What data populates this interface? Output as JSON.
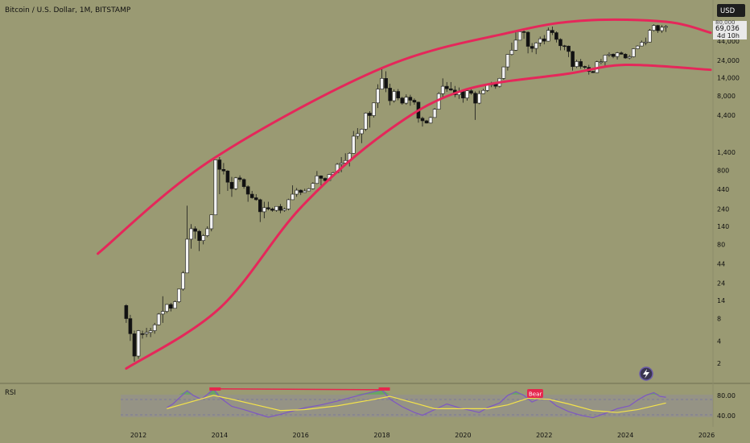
{
  "header": {
    "title": "Bitcoin / U.S. Dollar, 1M, BITSTAMP",
    "currency": "USD"
  },
  "price_badge": {
    "price": "69,036",
    "countdown": "4d 10h",
    "overlay": "80,000"
  },
  "rsi_panel": {
    "label": "RSI",
    "levels": [
      "80.00",
      "40.00"
    ],
    "bear_label": "Bear"
  },
  "icons": [
    "lightning-icon"
  ],
  "colors": {
    "background": "#9a9a73",
    "channel": "#e5275a",
    "rsi": "#7e57c2",
    "rsi_ma": "#f4e34a",
    "candle_up": "#f2f2f2",
    "candle_down": "#111111"
  },
  "chart_data": {
    "type": "candlestick",
    "title": "Bitcoin / U.S. Dollar, 1M, BITSTAMP",
    "y_scale": "log",
    "y_ticks": [
      "80,000",
      "44,000",
      "24,000",
      "14,000",
      "8,000",
      "4,400",
      "1,400",
      "800",
      "440",
      "240",
      "140",
      "80",
      "44",
      "24",
      "14",
      "8",
      "4",
      "2"
    ],
    "x_ticks": [
      "2012",
      "2014",
      "2016",
      "2018",
      "2020",
      "2022",
      "2024",
      "2026"
    ],
    "last_price": 69036,
    "channel": {
      "upper": [
        [
          2011.0,
          60
        ],
        [
          2013.8,
          1100
        ],
        [
          2018.0,
          19000
        ],
        [
          2021.2,
          58000
        ],
        [
          2023.0,
          83000
        ],
        [
          2025.0,
          80000
        ],
        [
          2026.1,
          57000
        ]
      ],
      "lower": [
        [
          2011.7,
          1.7
        ],
        [
          2014.0,
          11
        ],
        [
          2016.0,
          250
        ],
        [
          2018.1,
          2600
        ],
        [
          2020.0,
          9500
        ],
        [
          2022.6,
          16000
        ],
        [
          2024.0,
          21000
        ],
        [
          2026.1,
          18000
        ]
      ]
    },
    "candles": [
      [
        2011.7,
        12,
        12.5,
        7,
        8
      ],
      [
        2011.8,
        8,
        9,
        4,
        5
      ],
      [
        2011.9,
        5,
        5.5,
        2.1,
        2.5
      ],
      [
        2012.0,
        2.5,
        5.6,
        2.3,
        5.5
      ],
      [
        2012.1,
        5,
        5.5,
        4.3,
        4.9
      ],
      [
        2012.2,
        5,
        6,
        4.5,
        5.2
      ],
      [
        2012.3,
        5.2,
        6,
        4.5,
        5.5
      ],
      [
        2012.4,
        5.5,
        7,
        5,
        6.6
      ],
      [
        2012.5,
        6.6,
        9.5,
        6.5,
        9.2
      ],
      [
        2012.6,
        9.2,
        16,
        7,
        10
      ],
      [
        2012.7,
        10,
        12.5,
        9.5,
        12.4
      ],
      [
        2012.8,
        12.4,
        13,
        10,
        11
      ],
      [
        2012.9,
        11,
        14,
        11,
        13.5
      ],
      [
        2013.0,
        13.5,
        20,
        13,
        20
      ],
      [
        2013.1,
        20,
        35,
        19,
        33
      ],
      [
        2013.2,
        33,
        266,
        50,
        94
      ],
      [
        2013.3,
        94,
        150,
        70,
        130
      ],
      [
        2013.4,
        130,
        140,
        95,
        120
      ],
      [
        2013.5,
        120,
        125,
        65,
        90
      ],
      [
        2013.6,
        90,
        110,
        80,
        105
      ],
      [
        2013.7,
        105,
        140,
        100,
        130
      ],
      [
        2013.8,
        130,
        160,
        120,
        200
      ],
      [
        2013.9,
        200,
        1100,
        200,
        1100
      ],
      [
        2014.0,
        1100,
        1200,
        380,
        820
      ],
      [
        2014.1,
        820,
        1000,
        700,
        780
      ],
      [
        2014.2,
        780,
        800,
        420,
        550
      ],
      [
        2014.3,
        550,
        650,
        350,
        450
      ],
      [
        2014.4,
        450,
        650,
        430,
        630
      ],
      [
        2014.5,
        630,
        680,
        560,
        600
      ],
      [
        2014.6,
        600,
        620,
        450,
        480
      ],
      [
        2014.7,
        480,
        500,
        300,
        380
      ],
      [
        2014.8,
        380,
        420,
        330,
        340
      ],
      [
        2014.9,
        340,
        380,
        310,
        320
      ],
      [
        2015.0,
        320,
        330,
        160,
        220
      ],
      [
        2015.1,
        220,
        300,
        180,
        250
      ],
      [
        2015.2,
        250,
        300,
        230,
        240
      ],
      [
        2015.3,
        240,
        250,
        220,
        230
      ],
      [
        2015.4,
        230,
        260,
        220,
        260
      ],
      [
        2015.5,
        260,
        280,
        210,
        230
      ],
      [
        2015.6,
        230,
        250,
        220,
        240
      ],
      [
        2015.7,
        240,
        330,
        230,
        320
      ],
      [
        2015.8,
        320,
        500,
        320,
        380
      ],
      [
        2015.9,
        380,
        460,
        350,
        430
      ],
      [
        2016.0,
        430,
        440,
        370,
        400
      ],
      [
        2016.1,
        400,
        450,
        400,
        420
      ],
      [
        2016.2,
        420,
        460,
        420,
        450
      ],
      [
        2016.3,
        450,
        550,
        440,
        530
      ],
      [
        2016.4,
        530,
        780,
        520,
        670
      ],
      [
        2016.5,
        670,
        680,
        500,
        620
      ],
      [
        2016.6,
        620,
        640,
        560,
        580
      ],
      [
        2016.7,
        580,
        710,
        580,
        700
      ],
      [
        2016.8,
        700,
        760,
        690,
        740
      ],
      [
        2016.9,
        740,
        1000,
        740,
        960
      ],
      [
        2017.0,
        960,
        1200,
        750,
        1000
      ],
      [
        2017.1,
        1000,
        1350,
        950,
        1080
      ],
      [
        2017.2,
        1080,
        1400,
        900,
        1350
      ],
      [
        2017.3,
        1350,
        2700,
        1350,
        2300
      ],
      [
        2017.4,
        2300,
        2950,
        2100,
        2480
      ],
      [
        2017.5,
        2480,
        2900,
        1850,
        2850
      ],
      [
        2017.6,
        2850,
        4800,
        2700,
        4700
      ],
      [
        2017.7,
        4700,
        5000,
        3000,
        4350
      ],
      [
        2017.8,
        4350,
        6500,
        4100,
        6450
      ],
      [
        2017.9,
        6450,
        11500,
        5500,
        9900
      ],
      [
        2018.0,
        9900,
        19500,
        9800,
        13800
      ],
      [
        2018.1,
        13800,
        17200,
        9000,
        10200
      ],
      [
        2018.2,
        10200,
        11700,
        6000,
        6900
      ],
      [
        2018.3,
        6900,
        9800,
        6500,
        9200
      ],
      [
        2018.4,
        9200,
        9900,
        7000,
        7500
      ],
      [
        2018.5,
        7500,
        7800,
        6100,
        6400
      ],
      [
        2018.6,
        6400,
        8400,
        6100,
        7700
      ],
      [
        2018.7,
        7700,
        8300,
        5900,
        7000
      ],
      [
        2018.8,
        7000,
        7400,
        6100,
        6600
      ],
      [
        2018.9,
        6600,
        6700,
        3500,
        4000
      ],
      [
        2019.0,
        4000,
        4200,
        3100,
        3700
      ],
      [
        2019.1,
        3700,
        3800,
        3400,
        3450
      ],
      [
        2019.2,
        3450,
        4200,
        3400,
        4100
      ],
      [
        2019.3,
        4100,
        5500,
        4100,
        5300
      ],
      [
        2019.4,
        5300,
        9000,
        5300,
        8600
      ],
      [
        2019.5,
        8600,
        13800,
        7600,
        10800
      ],
      [
        2019.6,
        10800,
        12300,
        9100,
        10000
      ],
      [
        2019.7,
        10000,
        12300,
        9400,
        9600
      ],
      [
        2019.8,
        9600,
        10900,
        7700,
        8300
      ],
      [
        2019.9,
        8300,
        10400,
        7300,
        9200
      ],
      [
        2020.0,
        9200,
        9500,
        6500,
        7500
      ],
      [
        2020.1,
        7500,
        9500,
        6900,
        9400
      ],
      [
        2020.2,
        9400,
        10500,
        8300,
        8700
      ],
      [
        2020.3,
        8700,
        9200,
        3800,
        6400
      ],
      [
        2020.4,
        6400,
        9400,
        6200,
        8600
      ],
      [
        2020.5,
        8600,
        10000,
        8500,
        9500
      ],
      [
        2020.6,
        9500,
        11400,
        9100,
        11300
      ],
      [
        2020.7,
        11300,
        12400,
        10500,
        11700
      ],
      [
        2020.8,
        11700,
        12100,
        10000,
        10800
      ],
      [
        2020.9,
        10800,
        14000,
        10400,
        13800
      ],
      [
        2021.0,
        13800,
        19800,
        13200,
        19700
      ],
      [
        2021.1,
        19700,
        29300,
        17600,
        29000
      ],
      [
        2021.2,
        29000,
        41900,
        28100,
        33100
      ],
      [
        2021.3,
        33100,
        58300,
        32300,
        45200
      ],
      [
        2021.4,
        45200,
        61700,
        44900,
        58800
      ],
      [
        2021.5,
        58800,
        64800,
        47000,
        57700
      ],
      [
        2021.6,
        57700,
        59500,
        30000,
        37300
      ],
      [
        2021.7,
        37300,
        41300,
        31000,
        35000
      ],
      [
        2021.8,
        35000,
        42500,
        29300,
        41500
      ],
      [
        2021.9,
        41500,
        50500,
        37400,
        47100
      ],
      [
        2022.0,
        47100,
        52900,
        39700,
        43800
      ],
      [
        2022.1,
        43800,
        66900,
        43300,
        61300
      ],
      [
        2022.2,
        61300,
        69000,
        53000,
        57000
      ],
      [
        2022.3,
        57000,
        59200,
        42000,
        46300
      ],
      [
        2022.4,
        46300,
        48000,
        32900,
        38000
      ],
      [
        2022.5,
        38000,
        39000,
        33000,
        37600
      ],
      [
        2022.6,
        37600,
        38200,
        26700,
        31800
      ],
      [
        2022.7,
        31800,
        32400,
        17600,
        19900
      ],
      [
        2022.8,
        19900,
        24600,
        19000,
        23300
      ],
      [
        2022.9,
        23300,
        25200,
        18600,
        20000
      ],
      [
        2023.0,
        20000,
        20500,
        18500,
        19400
      ],
      [
        2023.1,
        19400,
        21000,
        15500,
        17100
      ],
      [
        2023.2,
        17100,
        17400,
        16300,
        16500
      ],
      [
        2023.3,
        16500,
        23900,
        16500,
        23100
      ],
      [
        2023.4,
        23100,
        25200,
        21400,
        23100
      ],
      [
        2023.5,
        23100,
        28800,
        19500,
        28400
      ],
      [
        2023.6,
        28400,
        31000,
        26900,
        29200
      ],
      [
        2023.7,
        29200,
        30000,
        25800,
        27200
      ],
      [
        2023.8,
        27200,
        31400,
        24800,
        30500
      ],
      [
        2023.9,
        30500,
        31800,
        28900,
        29200
      ],
      [
        2024.0,
        29200,
        30200,
        25300,
        26000
      ],
      [
        2024.1,
        26000,
        28600,
        24900,
        27000
      ],
      [
        2024.2,
        27000,
        35200,
        26500,
        34600
      ],
      [
        2024.3,
        34600,
        38400,
        34100,
        37700
      ],
      [
        2024.4,
        37700,
        44700,
        37600,
        42300
      ],
      [
        2024.5,
        42300,
        48900,
        38600,
        42600
      ],
      [
        2024.6,
        42600,
        63900,
        42200,
        61200
      ],
      [
        2024.7,
        61200,
        73800,
        59000,
        71300
      ],
      [
        2024.8,
        71300,
        72700,
        56500,
        60700
      ],
      [
        2024.9,
        60700,
        71900,
        56600,
        67500
      ],
      [
        2025.0,
        67500,
        72000,
        58400,
        69036
      ]
    ],
    "rsi": [
      [
        2012.7,
        52
      ],
      [
        2012.85,
        60
      ],
      [
        2013.0,
        72
      ],
      [
        2013.2,
        88
      ],
      [
        2013.35,
        78
      ],
      [
        2013.55,
        70
      ],
      [
        2013.7,
        80
      ],
      [
        2013.85,
        92
      ],
      [
        2014.0,
        74
      ],
      [
        2014.3,
        55
      ],
      [
        2014.6,
        48
      ],
      [
        2014.9,
        40
      ],
      [
        2015.2,
        32
      ],
      [
        2015.5,
        38
      ],
      [
        2015.8,
        45
      ],
      [
        2016.1,
        52
      ],
      [
        2016.5,
        58
      ],
      [
        2016.9,
        66
      ],
      [
        2017.3,
        75
      ],
      [
        2017.7,
        84
      ],
      [
        2018.0,
        90
      ],
      [
        2018.2,
        70
      ],
      [
        2018.5,
        54
      ],
      [
        2018.8,
        42
      ],
      [
        2019.0,
        36
      ],
      [
        2019.3,
        48
      ],
      [
        2019.6,
        60
      ],
      [
        2019.9,
        52
      ],
      [
        2020.2,
        46
      ],
      [
        2020.4,
        42
      ],
      [
        2020.6,
        52
      ],
      [
        2020.9,
        62
      ],
      [
        2021.1,
        78
      ],
      [
        2021.3,
        86
      ],
      [
        2021.5,
        78
      ],
      [
        2021.7,
        64
      ],
      [
        2021.9,
        72
      ],
      [
        2022.1,
        70
      ],
      [
        2022.3,
        56
      ],
      [
        2022.6,
        44
      ],
      [
        2022.9,
        36
      ],
      [
        2023.2,
        31
      ],
      [
        2023.5,
        40
      ],
      [
        2023.8,
        50
      ],
      [
        2024.1,
        56
      ],
      [
        2024.3,
        68
      ],
      [
        2024.5,
        78
      ],
      [
        2024.7,
        84
      ],
      [
        2024.85,
        76
      ],
      [
        2025.0,
        74
      ]
    ],
    "rsi_ma": [
      [
        2012.7,
        50
      ],
      [
        2013.2,
        62
      ],
      [
        2013.85,
        78
      ],
      [
        2014.3,
        70
      ],
      [
        2014.9,
        58
      ],
      [
        2015.5,
        46
      ],
      [
        2016.1,
        48
      ],
      [
        2016.9,
        56
      ],
      [
        2017.7,
        68
      ],
      [
        2018.2,
        76
      ],
      [
        2018.8,
        62
      ],
      [
        2019.3,
        50
      ],
      [
        2019.9,
        50
      ],
      [
        2020.6,
        50
      ],
      [
        2021.1,
        58
      ],
      [
        2021.6,
        72
      ],
      [
        2022.1,
        70
      ],
      [
        2022.6,
        60
      ],
      [
        2023.2,
        46
      ],
      [
        2023.8,
        42
      ],
      [
        2024.3,
        48
      ],
      [
        2024.8,
        58
      ],
      [
        2025.0,
        62
      ]
    ],
    "rsi_ylim": [
      20,
      100
    ],
    "grid": false
  }
}
